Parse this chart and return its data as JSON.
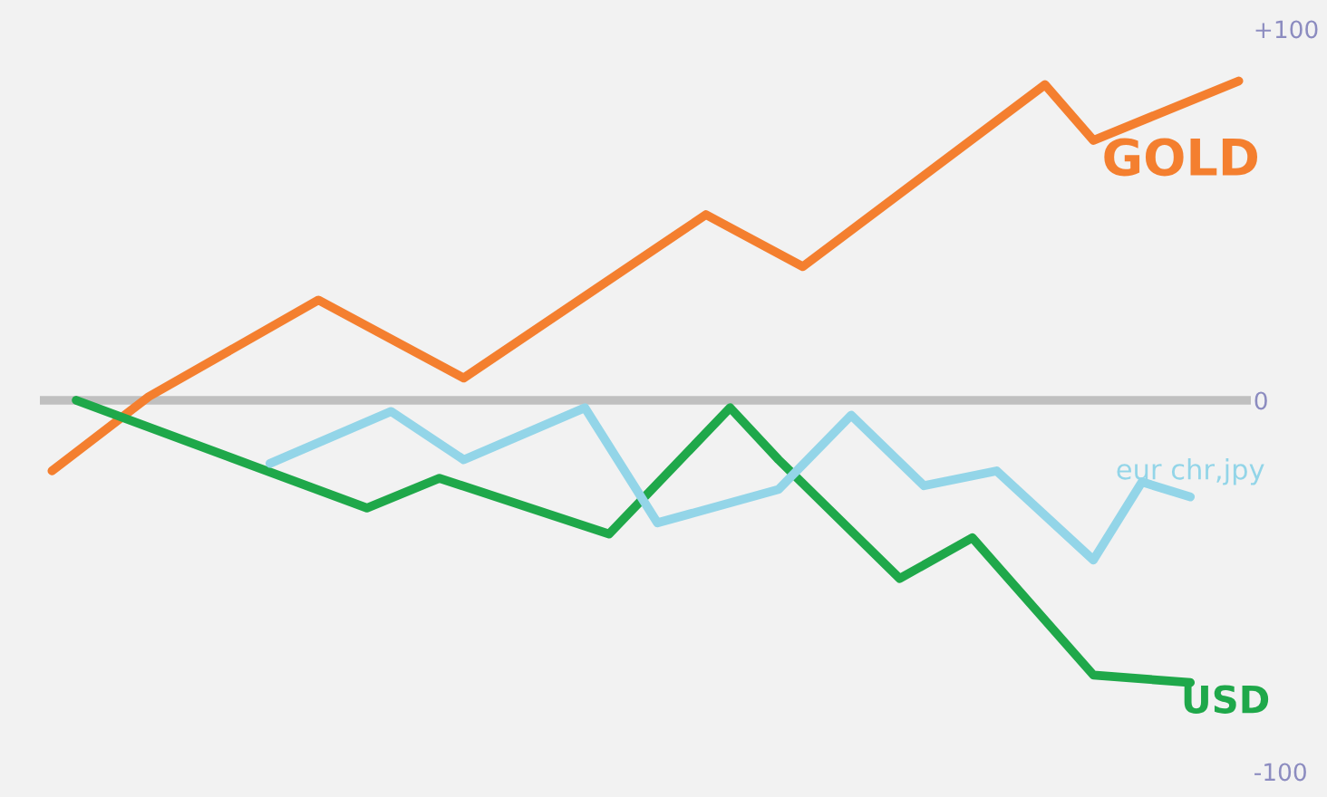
{
  "chart_data": {
    "type": "line",
    "categories": [
      null,
      null,
      null,
      null,
      null,
      null,
      null,
      null,
      null,
      null,
      null,
      null,
      null,
      null,
      null,
      null,
      null,
      null,
      null,
      null,
      null,
      null,
      null,
      null,
      null,
      null,
      null,
      null,
      null,
      null,
      null,
      null,
      null,
      null,
      null,
      null,
      null,
      null,
      null,
      null,
      null,
      null,
      null,
      null,
      null,
      null,
      null,
      null,
      null,
      null
    ],
    "series": [
      {
        "name": "GOLD",
        "color": "#f47f2f",
        "values": [
          -19,
          null,
          null,
          null,
          1,
          null,
          null,
          null,
          null,
          null,
          null,
          27,
          null,
          null,
          null,
          null,
          null,
          6,
          null,
          null,
          null,
          null,
          null,
          null,
          null,
          null,
          null,
          50,
          null,
          null,
          null,
          36,
          null,
          null,
          null,
          null,
          null,
          null,
          null,
          null,
          null,
          85,
          null,
          70,
          null,
          null,
          null,
          null,
          null,
          86
        ]
      },
      {
        "name": "USD",
        "color": "#1fa84a",
        "values": [
          null,
          0,
          null,
          null,
          null,
          null,
          null,
          null,
          null,
          null,
          null,
          null,
          null,
          -29,
          null,
          null,
          -21,
          null,
          null,
          null,
          null,
          null,
          null,
          -36,
          null,
          null,
          null,
          null,
          -2,
          null,
          -16,
          null,
          null,
          null,
          null,
          -48,
          null,
          null,
          -37,
          null,
          null,
          null,
          null,
          -74,
          null,
          null,
          null,
          -76,
          null,
          null
        ]
      },
      {
        "name": "eur chr,jpy",
        "color": "#93d5e8",
        "values": [
          null,
          null,
          null,
          null,
          null,
          null,
          null,
          null,
          null,
          -17,
          null,
          null,
          null,
          null,
          -3,
          null,
          null,
          -16,
          null,
          null,
          null,
          null,
          -2,
          null,
          null,
          -33,
          null,
          null,
          null,
          null,
          -24,
          null,
          null,
          -4,
          null,
          null,
          -23,
          null,
          null,
          -19,
          null,
          null,
          null,
          -43,
          null,
          -22,
          null,
          -26,
          null,
          null
        ]
      }
    ],
    "ylim": [
      -100,
      100
    ],
    "yticks": [
      {
        "value": 100,
        "label": "+100"
      },
      {
        "value": 0,
        "label": "0"
      },
      {
        "value": -100,
        "label": "-100"
      }
    ],
    "tick_labels": "y",
    "grid": false,
    "legend": false,
    "marker": "none",
    "line_style": "solid",
    "ref_lines": [
      {
        "axis": "y",
        "value": 0,
        "color": "#c0c0c0"
      }
    ]
  }
}
